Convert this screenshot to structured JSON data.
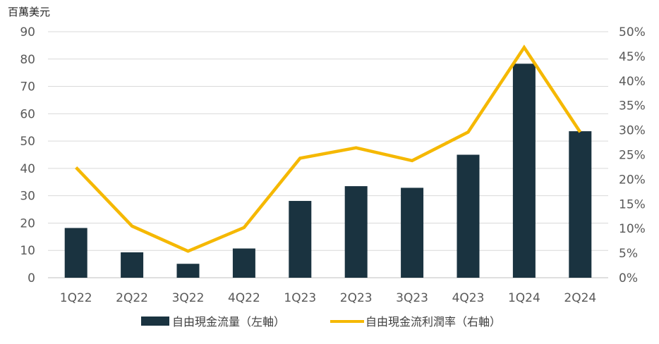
{
  "chart_data": {
    "type": "bar",
    "title": "",
    "left_axis_unit": "百萬美元",
    "categories": [
      "1Q22",
      "2Q22",
      "3Q22",
      "4Q22",
      "1Q23",
      "2Q23",
      "3Q23",
      "4Q23",
      "1Q24",
      "2Q24"
    ],
    "ylim": [
      0,
      90
    ],
    "y_ticks": [
      0,
      10,
      20,
      30,
      40,
      50,
      60,
      70,
      80,
      90
    ],
    "y2lim": [
      0,
      50
    ],
    "y2_ticks": [
      "0%",
      "5%",
      "10%",
      "15%",
      "20%",
      "25%",
      "30%",
      "35%",
      "40%",
      "45%",
      "50%"
    ],
    "grid": true,
    "legend_position": "bottom",
    "series": [
      {
        "name": "自由現金流量（左軸）",
        "kind": "bar",
        "axis": "left",
        "color": "#1a3340",
        "values": [
          18.2,
          9.3,
          5.1,
          10.7,
          28.1,
          33.5,
          32.9,
          45.0,
          78.3,
          53.6
        ]
      },
      {
        "name": "自由現金流利潤率（右軸）",
        "kind": "line",
        "axis": "right",
        "color": "#f5b800",
        "values": [
          22.4,
          10.5,
          5.4,
          10.2,
          24.3,
          26.4,
          23.8,
          29.6,
          46.8,
          29.6
        ]
      }
    ]
  }
}
